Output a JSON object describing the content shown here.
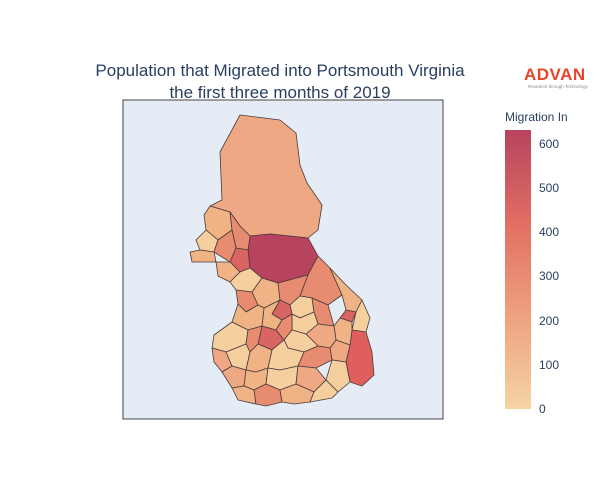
{
  "title": {
    "line1": "Population that Migrated into Portsmouth Virginia",
    "line2": "the first three months of 2019"
  },
  "logo": {
    "word": "ADVAN",
    "tagline": "Research through Technology",
    "color": "#e8452b"
  },
  "colorbar": {
    "title": "Migration In",
    "range": [
      0,
      630
    ],
    "ticks": [
      "600",
      "500",
      "400",
      "300",
      "200",
      "100",
      "0"
    ],
    "colorscale": [
      "#f5d4a4",
      "#eea27f",
      "#e16f63",
      "#b8435e"
    ]
  },
  "map": {
    "background": "#e5ecf6",
    "border_color": "#3b3b3b",
    "region_fills": {
      "north": "#eea883",
      "central_high": "#b8435e",
      "east_high": "#df5f5c",
      "light": "#f6cf9f",
      "medium": "#f0b386",
      "medium_dark": "#e78c70",
      "dark": "#d86561"
    }
  }
}
